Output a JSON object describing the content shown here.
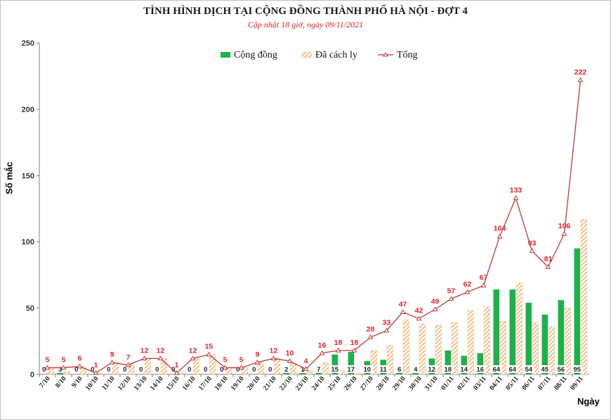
{
  "chart_data": {
    "type": "bar",
    "title": "TÌNH HÌNH DỊCH TẠI CỘNG ĐỒNG THÀNH PHỐ HÀ NỘI - ĐỢT 4",
    "subtitle": "Cập nhật 18 giờ, ngày 09/11/2021",
    "xlabel": "Ngày",
    "ylabel": "Số mắc",
    "ylim": [
      0,
      250
    ],
    "yticks": [
      0,
      50,
      100,
      150,
      200,
      250
    ],
    "legend_position": "top-center",
    "categories": [
      "7/10",
      "8/10",
      "9/10",
      "10/10",
      "11/10",
      "12/10",
      "13/10",
      "14/10",
      "15/10",
      "16/10",
      "17/10",
      "18/10",
      "19/10",
      "20/10",
      "21/10",
      "22/10",
      "23/10",
      "24/10",
      "25/10",
      "26/10",
      "27/10",
      "28/10",
      "29/10",
      "30/10",
      "31/10",
      "01/11",
      "02/11",
      "03/11",
      "04/11",
      "05/11",
      "06/11",
      "07/11",
      "08/11",
      "09/11"
    ],
    "series": [
      {
        "name": "Cộng đồng",
        "type": "bar",
        "color": "#1ab34a",
        "values": [
          0,
          3,
          0,
          0,
          0,
          0,
          0,
          0,
          0,
          0,
          0,
          0,
          0,
          0,
          0,
          2,
          1,
          7,
          15,
          17,
          10,
          11,
          6,
          4,
          12,
          18,
          14,
          16,
          64,
          64,
          54,
          45,
          56,
          95
        ]
      },
      {
        "name": "Đã cách ly",
        "type": "bar-hatched",
        "color": "#f0a860",
        "values": [
          5,
          2,
          6,
          1,
          9,
          7,
          12,
          12,
          1,
          12,
          15,
          5,
          5,
          9,
          12,
          8,
          3,
          9,
          3,
          1,
          18,
          22,
          41,
          38,
          37,
          39,
          48,
          51,
          40,
          69,
          39,
          36,
          50,
          117
        ]
      },
      {
        "name": "Tổng",
        "type": "line",
        "color": "#c0393b",
        "values": [
          5,
          5,
          6,
          1,
          9,
          7,
          12,
          12,
          1,
          12,
          15,
          5,
          5,
          9,
          12,
          10,
          4,
          16,
          18,
          18,
          28,
          33,
          47,
          42,
          49,
          57,
          62,
          67,
          104,
          133,
          93,
          81,
          106,
          222
        ]
      }
    ]
  },
  "colors": {
    "total_label": "#e8202a",
    "axis": "#808080"
  }
}
